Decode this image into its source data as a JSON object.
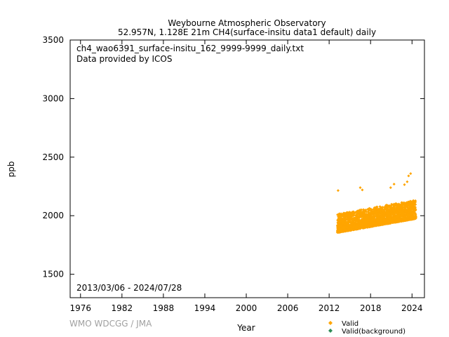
{
  "chart_data": {
    "type": "scatter",
    "title": "Weybourne Atmospheric Observatory",
    "subtitle": "52.957N, 1.128E 21m    CH4(surface-insitu data1 default) daily",
    "file_label": "ch4_wao6391_surface-insitu_162_9999-9999_daily.txt",
    "provider_label": "Data provided by ICOS",
    "date_range_label": "2013/03/06 - 2024/07/28",
    "xlabel": "Year",
    "ylabel": "ppb",
    "xlim": [
      1974.5,
      2025.8
    ],
    "ylim": [
      1300,
      3500
    ],
    "x_ticks": [
      "1976",
      "1982",
      "1988",
      "1994",
      "2000",
      "2006",
      "2012",
      "2018",
      "2024"
    ],
    "y_ticks": [
      "1500",
      "2000",
      "2500",
      "3000",
      "3500"
    ],
    "credit": "WMO WDCGG / JMA",
    "legend": {
      "placement": "bottom-right",
      "entries": [
        {
          "label": "Valid",
          "color": "#ffa500"
        },
        {
          "label": "Valid(background)",
          "color": "#2e8b57"
        }
      ]
    },
    "series": [
      {
        "name": "Valid",
        "color": "#ffa500",
        "x_start": 2013.18,
        "x_end": 2024.57,
        "baseline_start": 1905,
        "growth_ppb_per_year": 10.5,
        "typical_spread_ppb": [
          -50,
          110
        ],
        "highlights": [
          {
            "x": 2013.3,
            "y": 2215
          },
          {
            "x": 2016.5,
            "y": 2240
          },
          {
            "x": 2016.8,
            "y": 2220
          },
          {
            "x": 2020.9,
            "y": 2240
          },
          {
            "x": 2021.4,
            "y": 2270
          },
          {
            "x": 2022.9,
            "y": 2265
          },
          {
            "x": 2023.5,
            "y": 2340
          },
          {
            "x": 2023.8,
            "y": 2360
          },
          {
            "x": 2023.3,
            "y": 2290
          }
        ]
      }
    ]
  }
}
